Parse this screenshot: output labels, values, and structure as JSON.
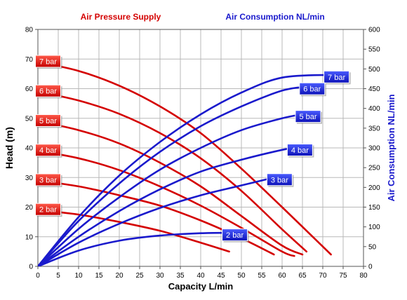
{
  "header": {
    "left_title": "Air Pressure Supply",
    "right_title": "Air Consumption NL/min"
  },
  "colors": {
    "pressure": "#d40000",
    "consumption": "#1a1acc",
    "grid": "#b8b8b8"
  },
  "chart_data": {
    "type": "line",
    "xlabel": "Capacity L/min",
    "ylabel": "Head (m)",
    "y2label": "Air Consumption NL/min",
    "xlim": [
      0,
      80
    ],
    "ylim": [
      0,
      80
    ],
    "y2lim": [
      0,
      600
    ],
    "x_ticks": [
      0,
      5,
      10,
      15,
      20,
      25,
      30,
      35,
      40,
      45,
      50,
      55,
      60,
      65,
      70,
      75,
      80
    ],
    "y_ticks": [
      0,
      10,
      20,
      30,
      40,
      50,
      60,
      70,
      80
    ],
    "y2_ticks": [
      0,
      50,
      100,
      150,
      200,
      250,
      300,
      350,
      400,
      450,
      500,
      550,
      600
    ],
    "grid": true,
    "pressure_series": [
      {
        "name": "7 bar",
        "x": [
          0,
          10,
          20,
          30,
          40,
          50,
          60,
          72
        ],
        "y": [
          69,
          66,
          61,
          54,
          45,
          33,
          20,
          4
        ]
      },
      {
        "name": "6 bar",
        "x": [
          0,
          10,
          20,
          30,
          40,
          50,
          60,
          66
        ],
        "y": [
          59,
          56,
          51.5,
          45,
          36.5,
          25.5,
          12.5,
          5
        ]
      },
      {
        "name": "5 bar",
        "x": [
          0,
          10,
          20,
          30,
          40,
          50,
          60,
          65
        ],
        "y": [
          49,
          46,
          41.5,
          35,
          27,
          17,
          7,
          4
        ]
      },
      {
        "name": "4 bar",
        "x": [
          0,
          10,
          20,
          30,
          40,
          50,
          60,
          63
        ],
        "y": [
          39,
          36.5,
          32.5,
          27,
          20.5,
          13,
          5,
          3.5
        ]
      },
      {
        "name": "3 bar",
        "x": [
          0,
          10,
          20,
          30,
          40,
          50,
          58
        ],
        "y": [
          29,
          27,
          24,
          20.5,
          15.5,
          9.5,
          4
        ]
      },
      {
        "name": "2 bar",
        "x": [
          0,
          10,
          20,
          30,
          40,
          47
        ],
        "y": [
          19,
          17.5,
          15,
          12,
          8,
          5
        ]
      }
    ],
    "consumption_series": [
      {
        "name": "7 bar",
        "x": [
          0,
          10,
          20,
          30,
          40,
          50,
          60,
          72
        ],
        "y": [
          0,
          125,
          230,
          315,
          385,
          440,
          478,
          485
        ]
      },
      {
        "name": "6 bar",
        "x": [
          0,
          10,
          20,
          30,
          40,
          50,
          60,
          66
        ],
        "y": [
          0,
          115,
          210,
          290,
          355,
          405,
          445,
          455
        ]
      },
      {
        "name": "5 bar",
        "x": [
          0,
          10,
          20,
          30,
          40,
          50,
          60,
          65
        ],
        "y": [
          0,
          95,
          175,
          245,
          300,
          345,
          375,
          385
        ]
      },
      {
        "name": "4 bar",
        "x": [
          0,
          10,
          20,
          30,
          40,
          50,
          60,
          63
        ],
        "y": [
          0,
          75,
          140,
          195,
          240,
          270,
          295,
          300
        ]
      },
      {
        "name": "3 bar",
        "x": [
          0,
          10,
          20,
          30,
          40,
          50,
          58
        ],
        "y": [
          0,
          60,
          108,
          148,
          180,
          205,
          225
        ]
      },
      {
        "name": "2 bar",
        "x": [
          0,
          10,
          20,
          30,
          40,
          47
        ],
        "y": [
          0,
          40,
          65,
          78,
          84,
          85
        ]
      }
    ]
  }
}
